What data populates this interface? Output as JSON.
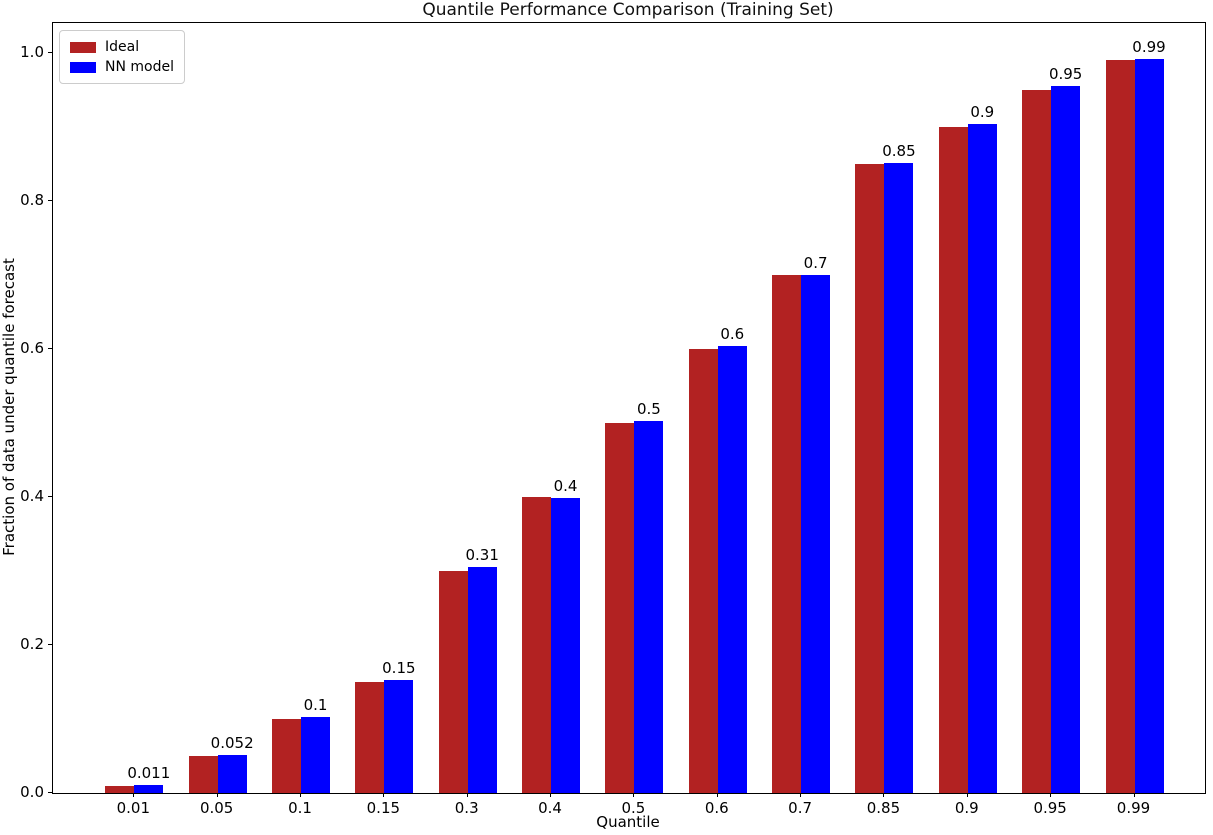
{
  "chart_data": {
    "type": "bar",
    "title": "Quantile Performance Comparison (Training Set)",
    "xlabel": "Quantile",
    "ylabel": "Fraction of data under quantile forecast",
    "categories": [
      "0.01",
      "0.05",
      "0.1",
      "0.15",
      "0.3",
      "0.4",
      "0.5",
      "0.6",
      "0.7",
      "0.85",
      "0.9",
      "0.95",
      "0.99"
    ],
    "series": [
      {
        "name": "Ideal",
        "color": "#b22222",
        "values": [
          0.01,
          0.05,
          0.1,
          0.15,
          0.3,
          0.4,
          0.5,
          0.6,
          0.7,
          0.85,
          0.9,
          0.95,
          0.99
        ]
      },
      {
        "name": "NN model",
        "color": "#0000ff",
        "values": [
          0.011,
          0.052,
          0.102,
          0.152,
          0.305,
          0.398,
          0.503,
          0.604,
          0.7,
          0.851,
          0.903,
          0.955,
          0.992
        ]
      }
    ],
    "bar_labels": [
      "0.011",
      "0.052",
      "0.1",
      "0.15",
      "0.31",
      "0.4",
      "0.5",
      "0.6",
      "0.7",
      "0.85",
      "0.9",
      "0.95",
      "0.99"
    ],
    "yticks": [
      "0.0",
      "0.2",
      "0.4",
      "0.6",
      "0.8",
      "1.0"
    ],
    "ylim": [
      0,
      1.04
    ],
    "legend_position": "upper-left",
    "grid": false
  }
}
